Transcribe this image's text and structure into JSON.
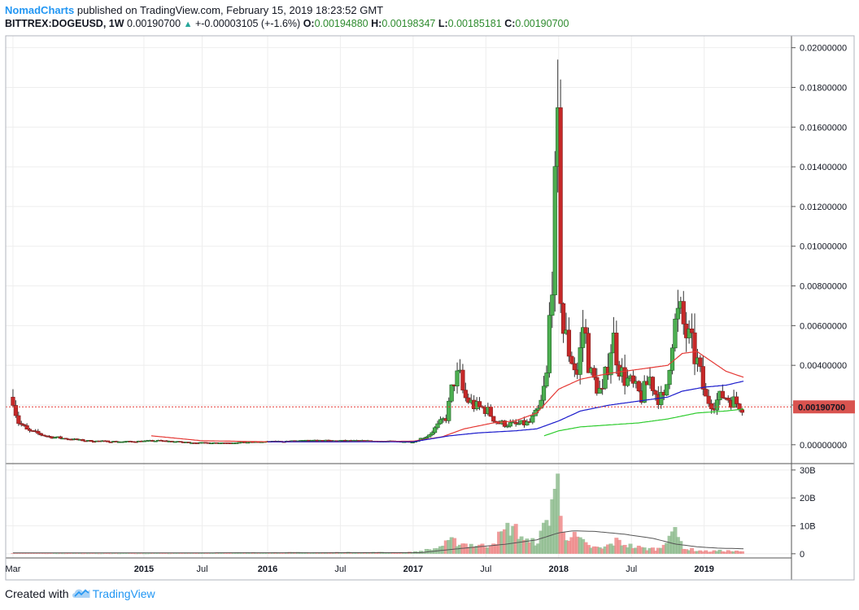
{
  "header": {
    "author": "NomadCharts",
    "published": " published on TradingView.com, February 15, 2019 18:23:52 GMT",
    "symbol": "BITTREX:DOGEUSD, 1W",
    "last": "0.00190700",
    "change": "+-0.00003105 (+-1.6%)",
    "o_label": "O:",
    "o_value": "0.00194880",
    "h_label": "H:",
    "h_value": "0.00198347",
    "l_label": "L:",
    "l_value": "0.00185181",
    "c_label": "C:",
    "c_value": "0.00190700"
  },
  "footer": {
    "created_with": "Created with",
    "brand": "TradingView"
  },
  "colors": {
    "up": "#2e7d32",
    "down": "#c62828",
    "candle_up_fill": "#4caf50",
    "vol_up": "#8fbc8f",
    "vol_down": "#ef8a8a",
    "ma_red": "#e53935",
    "ma_blue": "#1a1acc",
    "ma_green": "#2ecc2e",
    "price_line": "#e53935",
    "label_bg": "#d9534f",
    "grid": "#eeeeee"
  },
  "chart_data": {
    "type": "candlestick",
    "price_axis": {
      "ticks": [
        "0.02000000",
        "0.01800000",
        "0.01600000",
        "0.01400000",
        "0.01200000",
        "0.01000000",
        "0.00800000",
        "0.00600000",
        "0.00400000",
        "0.00200000",
        "0.00000000"
      ],
      "tick_values": [
        0.02,
        0.018,
        0.016,
        0.014,
        0.012,
        0.01,
        0.008,
        0.006,
        0.004,
        0.002,
        0.0
      ],
      "range": [
        -0.00095,
        0.0206
      ]
    },
    "last_price": 0.001907,
    "last_price_label": "0.00190700",
    "volume_axis": {
      "ticks": [
        "30B",
        "20B",
        "10B",
        "0"
      ],
      "tick_values": [
        30,
        20,
        10,
        0
      ],
      "range": [
        -1.5,
        32
      ]
    },
    "time_axis": {
      "labels": [
        "Mar",
        "2015",
        "Jul",
        "2016",
        "Jul",
        "2017",
        "Jul",
        "2018",
        "Jul",
        "2019"
      ],
      "years": [
        false,
        true,
        false,
        true,
        false,
        true,
        false,
        true,
        false,
        true
      ],
      "positions": [
        0,
        0.9,
        1.3,
        1.75,
        2.25,
        2.75,
        3.25,
        3.75,
        4.25,
        4.75
      ],
      "range": [
        -0.05,
        5.35
      ]
    },
    "series_anchor_price": [
      [
        0.0,
        0.0024
      ],
      [
        0.03,
        0.0012
      ],
      [
        0.1,
        0.0007
      ],
      [
        0.25,
        0.0004
      ],
      [
        0.5,
        0.0002
      ],
      [
        0.75,
        0.00015
      ],
      [
        1.0,
        0.0002
      ],
      [
        1.25,
        0.0001
      ],
      [
        1.5,
        0.0001
      ],
      [
        1.75,
        0.00015
      ],
      [
        2.0,
        0.0002
      ],
      [
        2.25,
        0.0002
      ],
      [
        2.5,
        0.00018
      ],
      [
        2.75,
        0.00015
      ],
      [
        2.85,
        0.00045
      ],
      [
        2.98,
        0.0014
      ],
      [
        3.03,
        0.0033
      ],
      [
        3.07,
        0.0034
      ],
      [
        3.1,
        0.0024
      ],
      [
        3.18,
        0.0019
      ],
      [
        3.25,
        0.0018
      ],
      [
        3.33,
        0.0011
      ],
      [
        3.45,
        0.001
      ],
      [
        3.55,
        0.0011
      ],
      [
        3.62,
        0.0018
      ],
      [
        3.67,
        0.0035
      ],
      [
        3.7,
        0.0085
      ],
      [
        3.72,
        0.0105
      ],
      [
        3.74,
        0.0168
      ],
      [
        3.755,
        0.009
      ],
      [
        3.78,
        0.0058
      ],
      [
        3.82,
        0.0048
      ],
      [
        3.88,
        0.0035
      ],
      [
        3.92,
        0.0062
      ],
      [
        3.97,
        0.0035
      ],
      [
        4.05,
        0.0025
      ],
      [
        4.12,
        0.0055
      ],
      [
        4.18,
        0.0036
      ],
      [
        4.25,
        0.003
      ],
      [
        4.32,
        0.0024
      ],
      [
        4.38,
        0.0034
      ],
      [
        4.42,
        0.0025
      ],
      [
        4.48,
        0.0022
      ],
      [
        4.53,
        0.0056
      ],
      [
        4.58,
        0.0066
      ],
      [
        4.63,
        0.0055
      ],
      [
        4.7,
        0.0042
      ],
      [
        4.76,
        0.0023
      ],
      [
        4.82,
        0.0021
      ],
      [
        4.88,
        0.0025
      ],
      [
        4.95,
        0.0022
      ],
      [
        5.02,
        0.0019
      ]
    ],
    "series_anchor_volume": [
      [
        0.0,
        0.3
      ],
      [
        0.9,
        0.2
      ],
      [
        1.75,
        0.5
      ],
      [
        2.75,
        0.6
      ],
      [
        2.9,
        2
      ],
      [
        3.02,
        5
      ],
      [
        3.1,
        4
      ],
      [
        3.25,
        3
      ],
      [
        3.35,
        7
      ],
      [
        3.42,
        11
      ],
      [
        3.48,
        8
      ],
      [
        3.55,
        4
      ],
      [
        3.62,
        6
      ],
      [
        3.68,
        14
      ],
      [
        3.72,
        26
      ],
      [
        3.74,
        30
      ],
      [
        3.76,
        14
      ],
      [
        3.8,
        8
      ],
      [
        3.88,
        6
      ],
      [
        3.95,
        3
      ],
      [
        4.05,
        2
      ],
      [
        4.15,
        5
      ],
      [
        4.25,
        3
      ],
      [
        4.35,
        2
      ],
      [
        4.45,
        2
      ],
      [
        4.52,
        10
      ],
      [
        4.56,
        7
      ],
      [
        4.62,
        2
      ],
      [
        4.75,
        1
      ],
      [
        4.9,
        1.2
      ],
      [
        5.02,
        0.8
      ]
    ],
    "ma_red_anchor": [
      [
        0.95,
        0.00045
      ],
      [
        1.3,
        0.0002
      ],
      [
        1.75,
        0.00015
      ],
      [
        2.25,
        0.00015
      ],
      [
        2.75,
        0.00018
      ],
      [
        2.95,
        0.0004
      ],
      [
        3.1,
        0.0008
      ],
      [
        3.3,
        0.0011
      ],
      [
        3.45,
        0.0012
      ],
      [
        3.6,
        0.0016
      ],
      [
        3.75,
        0.0028
      ],
      [
        3.9,
        0.0033
      ],
      [
        4.1,
        0.0036
      ],
      [
        4.3,
        0.0038
      ],
      [
        4.5,
        0.004
      ],
      [
        4.6,
        0.0046
      ],
      [
        4.7,
        0.0047
      ],
      [
        4.8,
        0.0042
      ],
      [
        4.9,
        0.0037
      ],
      [
        5.02,
        0.0034
      ]
    ],
    "ma_blue_anchor": [
      [
        1.75,
        0.00015
      ],
      [
        2.25,
        0.00015
      ],
      [
        2.75,
        0.00015
      ],
      [
        3.0,
        0.00045
      ],
      [
        3.2,
        0.0006
      ],
      [
        3.45,
        0.0007
      ],
      [
        3.6,
        0.0008
      ],
      [
        3.75,
        0.0012
      ],
      [
        3.9,
        0.0017
      ],
      [
        4.1,
        0.002
      ],
      [
        4.3,
        0.0022
      ],
      [
        4.5,
        0.0024
      ],
      [
        4.6,
        0.0027
      ],
      [
        4.75,
        0.0029
      ],
      [
        4.9,
        0.003
      ],
      [
        5.02,
        0.0032
      ]
    ],
    "ma_green_anchor": [
      [
        3.65,
        0.00045
      ],
      [
        3.75,
        0.0007
      ],
      [
        3.9,
        0.0009
      ],
      [
        4.1,
        0.001
      ],
      [
        4.3,
        0.0011
      ],
      [
        4.5,
        0.0013
      ],
      [
        4.7,
        0.0016
      ],
      [
        4.9,
        0.0017
      ],
      [
        5.02,
        0.0018
      ]
    ],
    "vol_ma_anchor": [
      [
        0.0,
        0.3
      ],
      [
        2.8,
        0.4
      ],
      [
        3.0,
        1.5
      ],
      [
        3.2,
        2.5
      ],
      [
        3.4,
        3.5
      ],
      [
        3.6,
        5
      ],
      [
        3.75,
        7.5
      ],
      [
        3.85,
        8.2
      ],
      [
        4.0,
        8.0
      ],
      [
        4.2,
        7.0
      ],
      [
        4.4,
        5.5
      ],
      [
        4.55,
        3.5
      ],
      [
        4.7,
        2.5
      ],
      [
        4.85,
        2.0
      ],
      [
        5.02,
        1.8
      ]
    ]
  }
}
